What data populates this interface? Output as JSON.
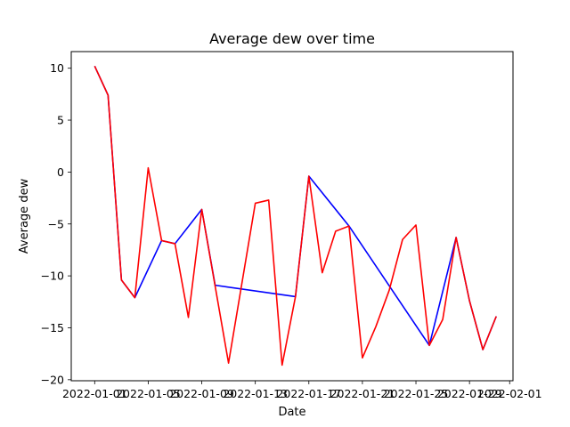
{
  "chart_data": {
    "type": "line",
    "title": "Average dew over time",
    "xlabel": "Date",
    "ylabel": "Average dew",
    "x_ticks": [
      "2022-01-01",
      "2022-01-05",
      "2022-01-09",
      "2022-01-13",
      "2022-01-17",
      "2022-01-21",
      "2022-01-25",
      "2022-01-29",
      "2022-02-01"
    ],
    "y_ticks": [
      -20,
      -15,
      -10,
      -5,
      0,
      5,
      10
    ],
    "xlim": [
      "2021-12-30T06:00",
      "2022-02-01T06:00"
    ],
    "ylim": [
      -20.1,
      11.6
    ],
    "grid": false,
    "series": [
      {
        "color": "#0000ff",
        "points": [
          {
            "x": "2022-01-01",
            "y": 10.2
          },
          {
            "x": "2022-01-02",
            "y": 7.4
          },
          {
            "x": "2022-01-03",
            "y": -10.4
          },
          {
            "x": "2022-01-04",
            "y": -12.1
          },
          {
            "x": "2022-01-06",
            "y": -6.6
          },
          {
            "x": "2022-01-07",
            "y": -6.9
          },
          {
            "x": "2022-01-09",
            "y": -3.6
          },
          {
            "x": "2022-01-10",
            "y": -10.9
          },
          {
            "x": "2022-01-16",
            "y": -12.0
          },
          {
            "x": "2022-01-17",
            "y": -0.4
          },
          {
            "x": "2022-01-20",
            "y": -5.2
          },
          {
            "x": "2022-01-26",
            "y": -16.7
          },
          {
            "x": "2022-01-28",
            "y": -6.3
          },
          {
            "x": "2022-01-29",
            "y": -12.4
          },
          {
            "x": "2022-01-30",
            "y": -17.1
          },
          {
            "x": "2022-01-31",
            "y": -13.9
          }
        ]
      },
      {
        "color": "#ff0000",
        "points": [
          {
            "x": "2022-01-01",
            "y": 10.2
          },
          {
            "x": "2022-01-02",
            "y": 7.4
          },
          {
            "x": "2022-01-03",
            "y": -10.4
          },
          {
            "x": "2022-01-04",
            "y": -12.1
          },
          {
            "x": "2022-01-05",
            "y": 0.4
          },
          {
            "x": "2022-01-06",
            "y": -6.6
          },
          {
            "x": "2022-01-07",
            "y": -6.9
          },
          {
            "x": "2022-01-08",
            "y": -14.0
          },
          {
            "x": "2022-01-09",
            "y": -3.6
          },
          {
            "x": "2022-01-11",
            "y": -18.4
          },
          {
            "x": "2022-01-13",
            "y": -3.0
          },
          {
            "x": "2022-01-14",
            "y": -2.7
          },
          {
            "x": "2022-01-15",
            "y": -18.6
          },
          {
            "x": "2022-01-16",
            "y": -12.0
          },
          {
            "x": "2022-01-17",
            "y": -0.4
          },
          {
            "x": "2022-01-18",
            "y": -9.7
          },
          {
            "x": "2022-01-19",
            "y": -5.7
          },
          {
            "x": "2022-01-20",
            "y": -5.2
          },
          {
            "x": "2022-01-21",
            "y": -17.9
          },
          {
            "x": "2022-01-22",
            "y": -14.9
          },
          {
            "x": "2022-01-23",
            "y": -11.4
          },
          {
            "x": "2022-01-24",
            "y": -6.5
          },
          {
            "x": "2022-01-25",
            "y": -5.1
          },
          {
            "x": "2022-01-26",
            "y": -16.7
          },
          {
            "x": "2022-01-27",
            "y": -14.2
          },
          {
            "x": "2022-01-28",
            "y": -6.3
          },
          {
            "x": "2022-01-29",
            "y": -12.4
          },
          {
            "x": "2022-01-30",
            "y": -17.1
          },
          {
            "x": "2022-01-31",
            "y": -13.9
          }
        ]
      }
    ]
  }
}
